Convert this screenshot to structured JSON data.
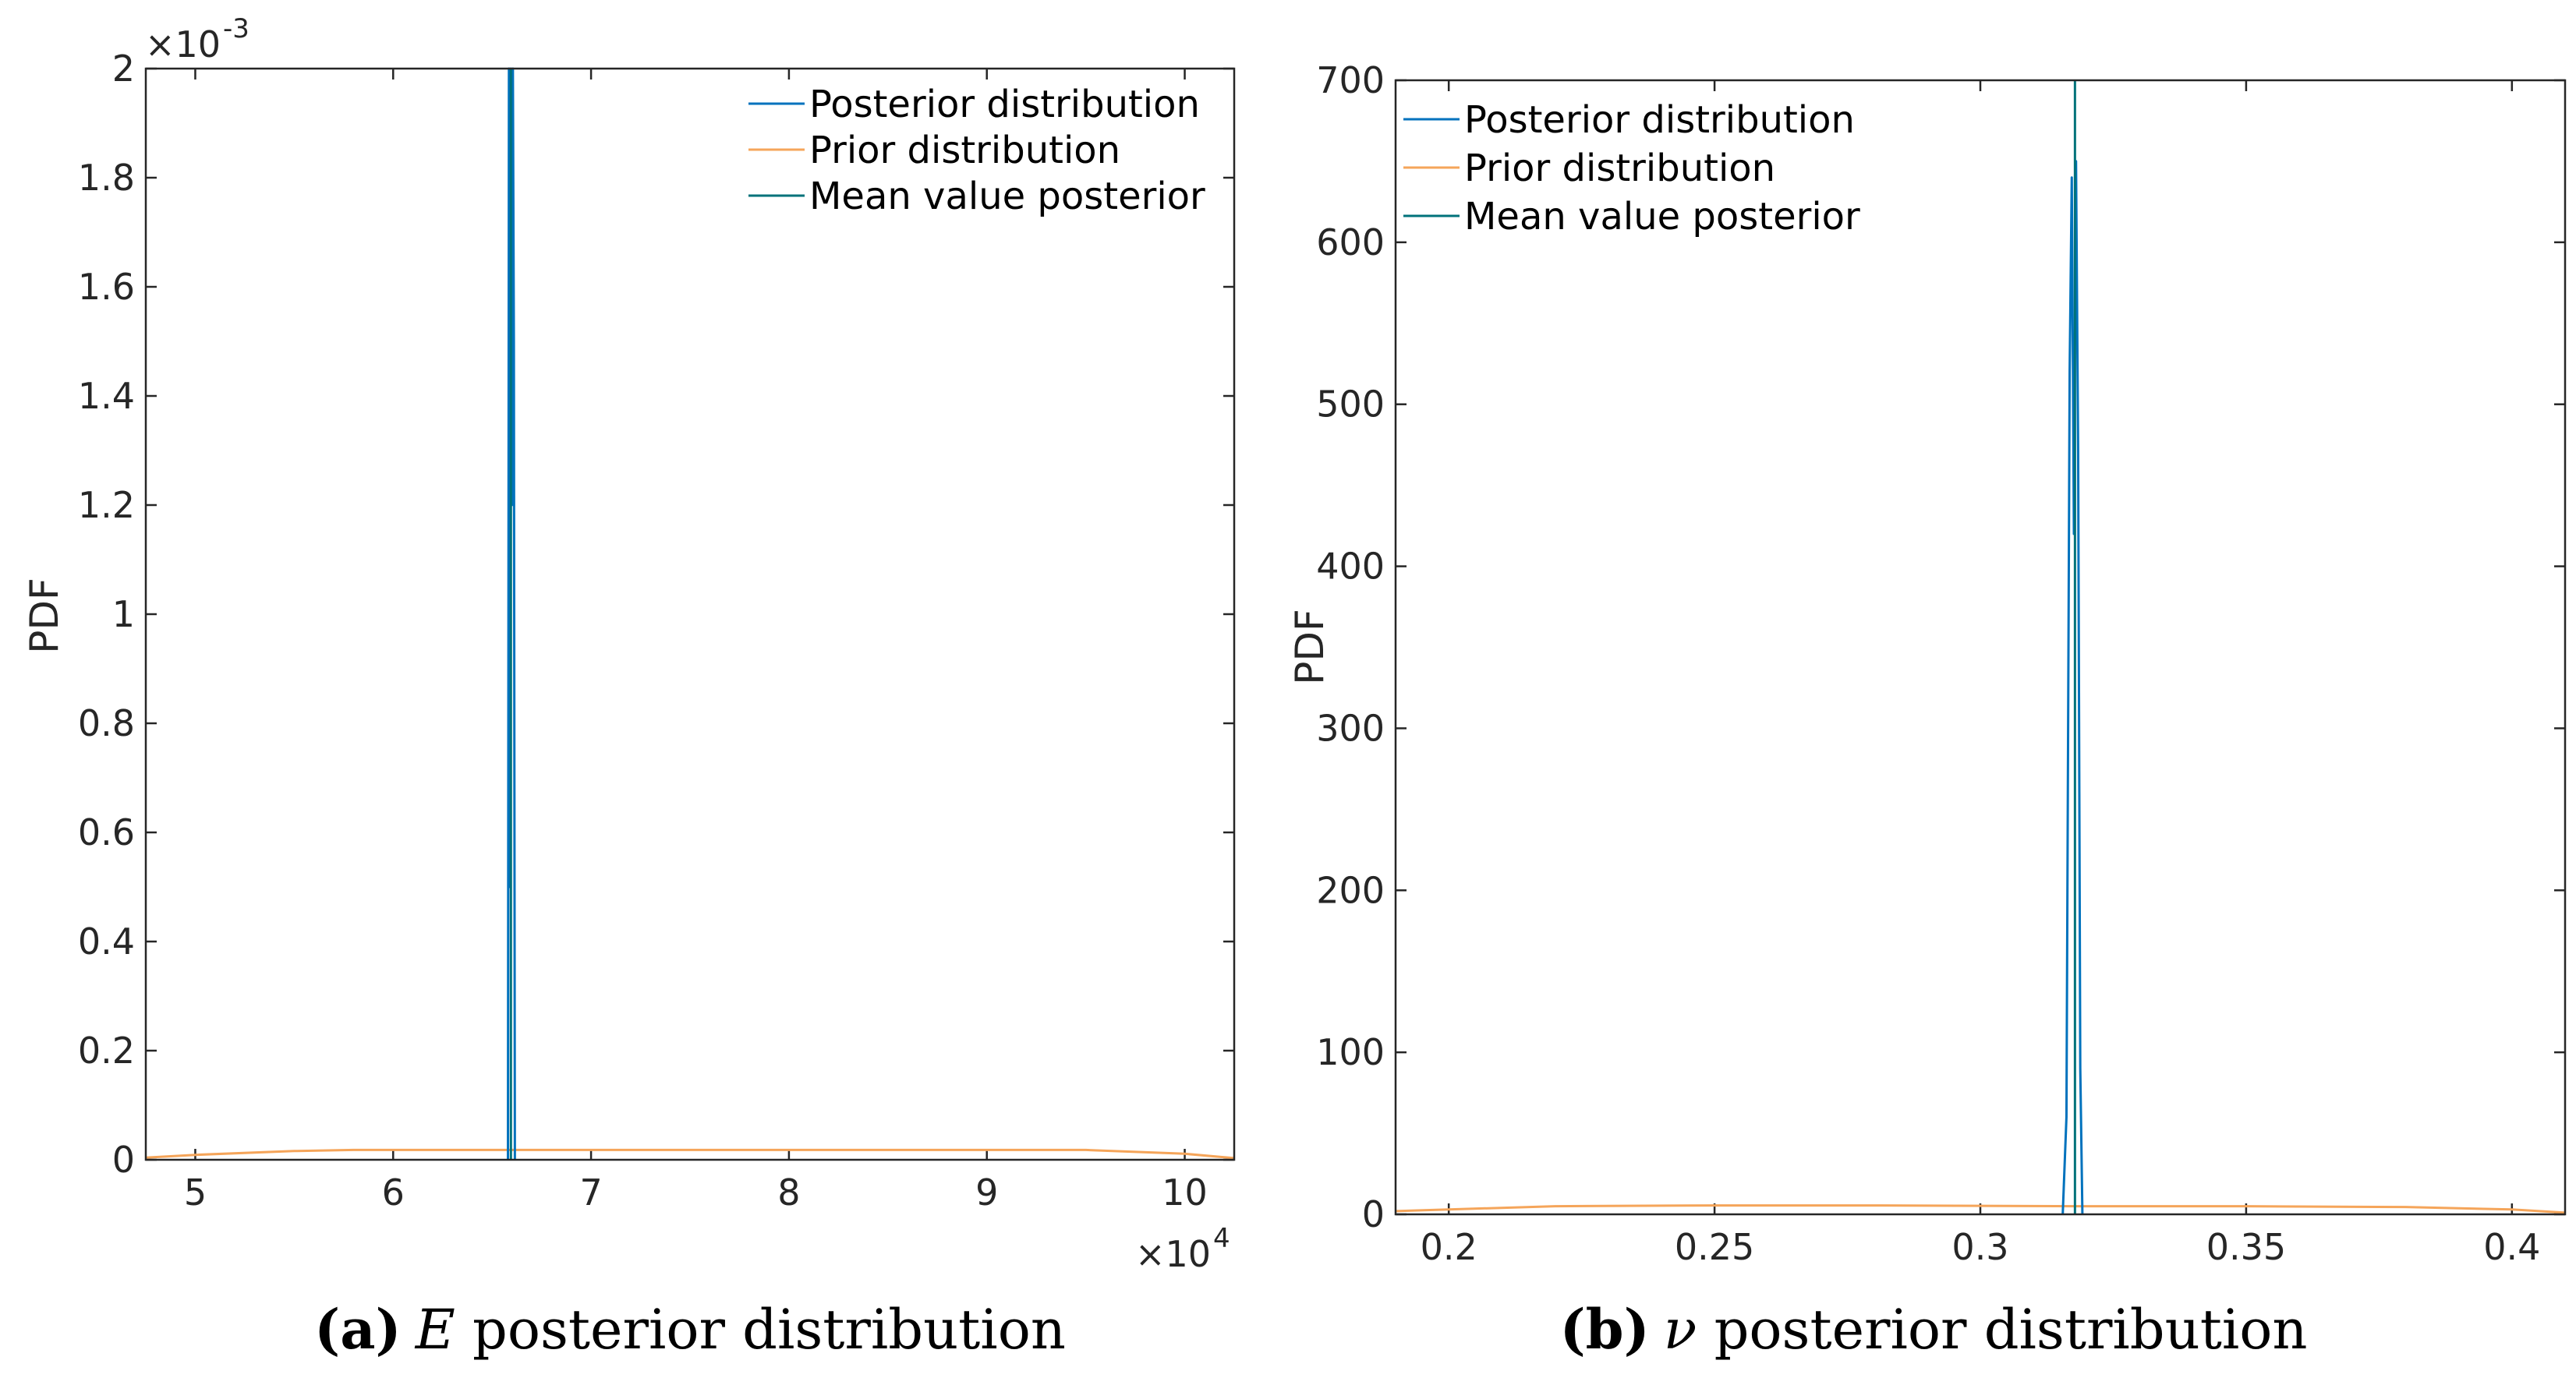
{
  "chart_data": [
    {
      "type": "line",
      "panel": "a",
      "xlabel": "",
      "ylabel": "PDF",
      "xlim": [
        4.75,
        10.25
      ],
      "ylim": [
        0,
        2
      ],
      "x_ticks": [
        "5",
        "6",
        "7",
        "8",
        "9",
        "10"
      ],
      "x_tick_values": [
        5,
        6,
        7,
        8,
        9,
        10
      ],
      "y_ticks": [
        "0",
        "0.2",
        "0.4",
        "0.6",
        "0.8",
        "1",
        "1.2",
        "1.4",
        "1.6",
        "1.8",
        "2"
      ],
      "y_tick_values": [
        0,
        0.2,
        0.4,
        0.6,
        0.8,
        1,
        1.2,
        1.4,
        1.6,
        1.8,
        2
      ],
      "x_exponent": {
        "base": "×10",
        "exp": "4"
      },
      "y_exponent": {
        "base": "×10",
        "exp": "-3"
      },
      "legend": [
        "Posterior distribution",
        "Prior distribution",
        "Mean value posterior"
      ],
      "legend_position": "top-right",
      "series": [
        {
          "name": "Posterior distribution",
          "color": "#0072BD",
          "x": [
            6.58,
            6.585,
            6.59,
            6.595,
            6.6,
            6.605,
            6.61,
            6.615
          ],
          "y": [
            0,
            2,
            0.5,
            2,
            1.2,
            2,
            1.5,
            0
          ]
        },
        {
          "name": "Prior distribution",
          "color": "#EDB120",
          "x": [
            4.75,
            5.0,
            5.5,
            5.8,
            6.5,
            7.5,
            8.5,
            9.5,
            10.0,
            10.25
          ],
          "y": [
            0.004,
            0.009,
            0.016,
            0.018,
            0.018,
            0.018,
            0.018,
            0.018,
            0.011,
            0.003
          ]
        },
        {
          "name": "Mean value posterior",
          "color": "#00727A",
          "x": [
            6.595,
            6.595
          ],
          "y": [
            0,
            2
          ]
        }
      ],
      "caption": {
        "label": "(a)",
        "symbol": "E",
        "text": " posterior distribution"
      }
    },
    {
      "type": "line",
      "panel": "b",
      "xlabel": "",
      "ylabel": "PDF",
      "xlim": [
        0.19,
        0.41
      ],
      "ylim": [
        0,
        700
      ],
      "x_ticks": [
        "0.2",
        "0.25",
        "0.3",
        "0.35",
        "0.4"
      ],
      "x_tick_values": [
        0.2,
        0.25,
        0.3,
        0.35,
        0.4
      ],
      "y_ticks": [
        "0",
        "100",
        "200",
        "300",
        "400",
        "500",
        "600",
        "700"
      ],
      "y_tick_values": [
        0,
        100,
        200,
        300,
        400,
        500,
        600,
        700
      ],
      "legend": [
        "Posterior distribution",
        "Prior distribution",
        "Mean value posterior"
      ],
      "legend_position": "top-left",
      "series": [
        {
          "name": "Posterior distribution",
          "color": "#0072BD",
          "x": [
            0.3155,
            0.3162,
            0.3168,
            0.3172,
            0.3176,
            0.318,
            0.3184,
            0.3188,
            0.3192
          ],
          "y": [
            0,
            60,
            520,
            640,
            420,
            650,
            470,
            90,
            0
          ]
        },
        {
          "name": "Prior distribution",
          "color": "#EDB120",
          "x": [
            0.19,
            0.2,
            0.22,
            0.25,
            0.28,
            0.32,
            0.35,
            0.38,
            0.4,
            0.41
          ],
          "y": [
            2,
            3,
            5,
            5.5,
            5.5,
            5,
            5,
            4.5,
            3,
            1
          ]
        },
        {
          "name": "Mean value posterior",
          "color": "#00727A",
          "x": [
            0.3178,
            0.3178
          ],
          "y": [
            0,
            700
          ]
        }
      ],
      "caption": {
        "label": "(b)",
        "symbol": "ν",
        "text": " posterior distribution"
      }
    }
  ]
}
